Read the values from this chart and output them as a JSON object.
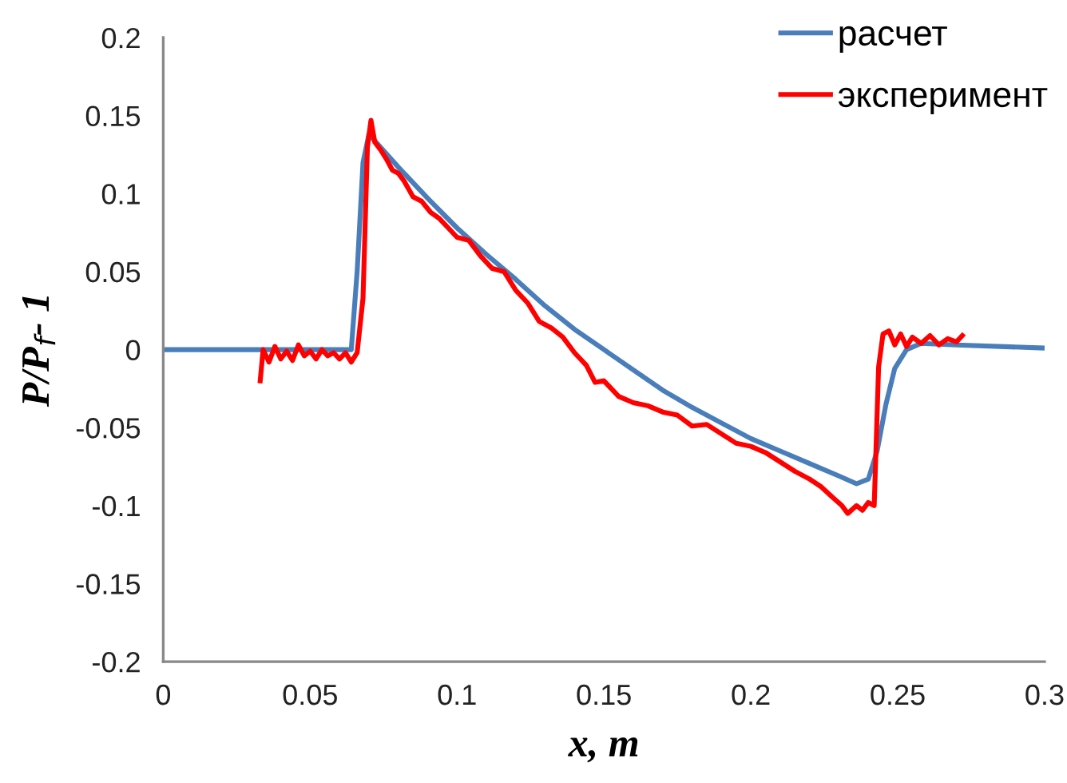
{
  "chart_data": {
    "type": "line",
    "xlabel": "x, m",
    "ylabel": "P/P$_{f}$- 1",
    "xlim": [
      0,
      0.3
    ],
    "xticks": [
      0,
      0.05,
      0.1,
      0.15,
      0.2,
      0.25,
      0.3
    ],
    "ylim": [
      -0.2,
      0.2
    ],
    "yticks": [
      -0.2,
      -0.15,
      -0.1,
      -0.05,
      0,
      0.05,
      0.1,
      0.15,
      0.2
    ],
    "grid": false,
    "legend": "top right",
    "marker": "none",
    "line_style": "solid",
    "series": [
      {
        "name": "расчет",
        "color": "#4a7ebb",
        "x": [
          0,
          0.064,
          0.066,
          0.068,
          0.07,
          0.08,
          0.09,
          0.1,
          0.11,
          0.12,
          0.13,
          0.14,
          0.15,
          0.16,
          0.17,
          0.18,
          0.19,
          0.2,
          0.21,
          0.22,
          0.23,
          0.236,
          0.24,
          0.243,
          0.246,
          0.249,
          0.253,
          0.258,
          0.27,
          0.3
        ],
        "values": [
          0,
          0,
          0.05,
          0.12,
          0.138,
          0.117,
          0.097,
          0.078,
          0.061,
          0.045,
          0.028,
          0.013,
          0.0,
          -0.013,
          -0.026,
          -0.037,
          -0.047,
          -0.057,
          -0.065,
          -0.073,
          -0.081,
          -0.086,
          -0.083,
          -0.065,
          -0.035,
          -0.012,
          0.0,
          0.004,
          0.003,
          0.001
        ]
      },
      {
        "name": "эксперимент",
        "color": "#ff0000",
        "x": [
          0.033,
          0.034,
          0.036,
          0.038,
          0.04,
          0.042,
          0.044,
          0.046,
          0.048,
          0.05,
          0.052,
          0.054,
          0.056,
          0.058,
          0.06,
          0.062,
          0.064,
          0.066,
          0.068,
          0.0695,
          0.0707,
          0.072,
          0.074,
          0.076,
          0.078,
          0.08,
          0.082,
          0.085,
          0.088,
          0.091,
          0.094,
          0.097,
          0.1,
          0.104,
          0.108,
          0.112,
          0.116,
          0.12,
          0.124,
          0.128,
          0.132,
          0.136,
          0.14,
          0.144,
          0.147,
          0.15,
          0.155,
          0.16,
          0.165,
          0.17,
          0.175,
          0.18,
          0.185,
          0.19,
          0.195,
          0.2,
          0.205,
          0.21,
          0.215,
          0.22,
          0.224,
          0.228,
          0.231,
          0.233,
          0.236,
          0.238,
          0.24,
          0.242,
          0.2435,
          0.245,
          0.247,
          0.249,
          0.251,
          0.253,
          0.255,
          0.258,
          0.261,
          0.264,
          0.267,
          0.27,
          0.272
        ],
        "values": [
          -0.02,
          0.0,
          -0.008,
          0.002,
          -0.006,
          -0.001,
          -0.007,
          0.003,
          -0.004,
          -0.001,
          -0.006,
          0.0,
          -0.004,
          -0.002,
          -0.006,
          -0.002,
          -0.008,
          -0.002,
          0.033,
          0.13,
          0.147,
          0.133,
          0.128,
          0.122,
          0.115,
          0.113,
          0.108,
          0.098,
          0.095,
          0.088,
          0.084,
          0.078,
          0.072,
          0.07,
          0.06,
          0.052,
          0.05,
          0.038,
          0.03,
          0.018,
          0.014,
          0.008,
          -0.002,
          -0.01,
          -0.021,
          -0.02,
          -0.03,
          -0.034,
          -0.036,
          -0.04,
          -0.042,
          -0.049,
          -0.048,
          -0.054,
          -0.06,
          -0.062,
          -0.066,
          -0.072,
          -0.078,
          -0.083,
          -0.088,
          -0.095,
          -0.1,
          -0.105,
          -0.1,
          -0.103,
          -0.098,
          -0.1,
          -0.011,
          0.01,
          0.012,
          0.003,
          0.01,
          0.002,
          0.008,
          0.004,
          0.009,
          0.003,
          0.007,
          0.005,
          0.009
        ]
      }
    ]
  }
}
